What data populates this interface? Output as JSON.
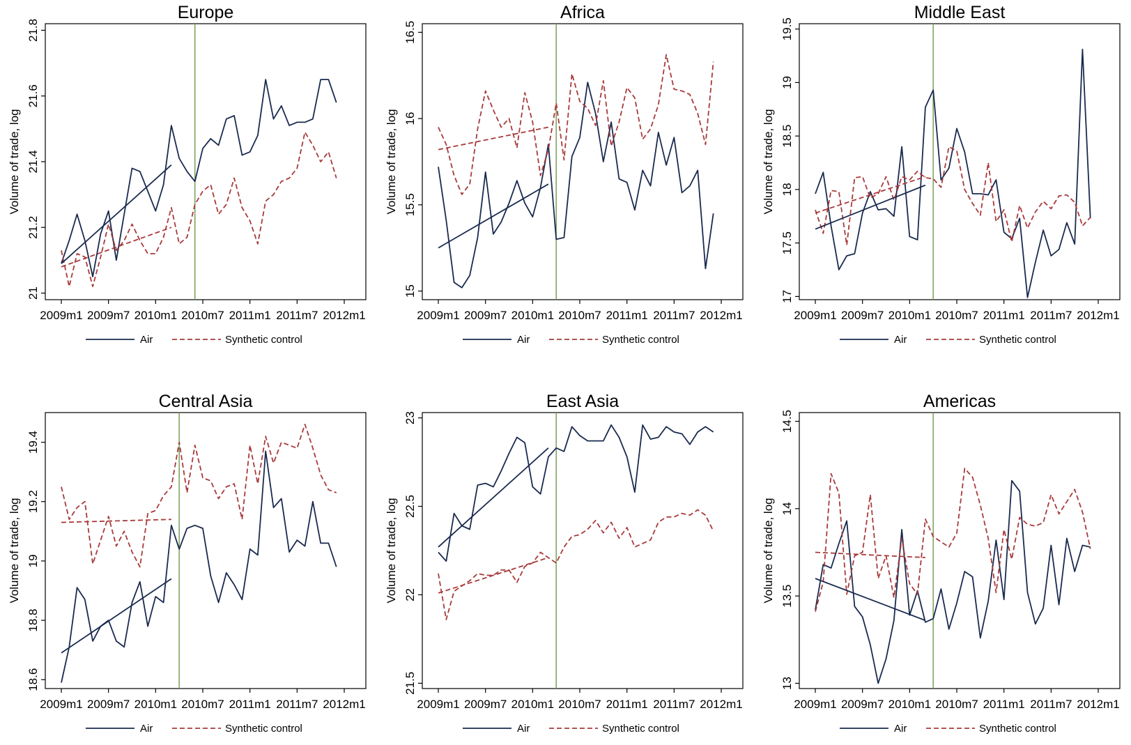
{
  "chart_data": [
    {
      "type": "line",
      "title": "Europe",
      "ylabel": "Volume of trade, log",
      "xlabel": "",
      "x_ticks": [
        "2009m1",
        "2009m7",
        "2010m1",
        "2010m7",
        "2011m1",
        "2011m7",
        "2012m1"
      ],
      "ylim": [
        20.98,
        21.82
      ],
      "y_ticks": [
        "21",
        "21.2",
        "21.4",
        "21.6",
        "21.8"
      ],
      "y_tick_values": [
        21,
        21.2,
        21.4,
        21.6,
        21.8
      ],
      "treatment_month": 17,
      "colors": {
        "air": "#1a2a4f",
        "synthetic": "#a83a3a",
        "vline": "#6f9a4a"
      },
      "legend": [
        "Air",
        "Synthetic control"
      ],
      "series": [
        {
          "name": "Air",
          "style": "solid",
          "values": [
            21.09,
            21.16,
            21.24,
            21.16,
            21.05,
            21.18,
            21.25,
            21.1,
            21.24,
            21.38,
            21.37,
            21.31,
            21.25,
            21.33,
            21.51,
            21.41,
            21.37,
            21.34,
            21.44,
            21.47,
            21.45,
            21.53,
            21.54,
            21.42,
            21.43,
            21.48,
            21.65,
            21.53,
            21.57,
            21.51,
            21.52,
            21.52,
            21.53,
            21.65,
            21.65,
            21.58
          ]
        },
        {
          "name": "Synthetic control",
          "style": "dashed",
          "values": [
            21.13,
            21.02,
            21.12,
            21.11,
            21.02,
            21.11,
            21.21,
            21.13,
            21.16,
            21.21,
            21.16,
            21.12,
            21.12,
            21.17,
            21.26,
            21.15,
            21.17,
            21.27,
            21.31,
            21.33,
            21.24,
            21.27,
            21.35,
            21.26,
            21.22,
            21.15,
            21.28,
            21.3,
            21.34,
            21.35,
            21.38,
            21.49,
            21.45,
            21.4,
            21.43,
            21.35
          ]
        }
      ],
      "trend_lines": [
        {
          "name": "Air",
          "x": [
            0,
            14
          ],
          "y": [
            21.09,
            21.39
          ]
        },
        {
          "name": "Synthetic control",
          "x": [
            0,
            14
          ],
          "y": [
            21.08,
            21.2
          ]
        }
      ]
    },
    {
      "type": "line",
      "title": "Africa",
      "ylabel": "Volume of trade, log",
      "xlabel": "",
      "x_ticks": [
        "2009m1",
        "2009m7",
        "2010m1",
        "2010m7",
        "2011m1",
        "2011m7",
        "2012m1"
      ],
      "ylim": [
        14.95,
        16.55
      ],
      "y_ticks": [
        "15",
        "15.5",
        "16",
        "16.5"
      ],
      "y_tick_values": [
        15,
        15.5,
        16,
        16.5
      ],
      "treatment_month": 15,
      "colors": {
        "air": "#1a2a4f",
        "synthetic": "#a83a3a",
        "vline": "#6f9a4a"
      },
      "legend": [
        "Air",
        "Synthetic control"
      ],
      "series": [
        {
          "name": "Air",
          "style": "solid",
          "values": [
            15.72,
            15.41,
            15.05,
            15.02,
            15.09,
            15.31,
            15.69,
            15.33,
            15.4,
            15.51,
            15.64,
            15.51,
            15.43,
            15.6,
            15.85,
            15.3,
            15.31,
            15.78,
            15.89,
            16.21,
            16.03,
            15.75,
            15.98,
            15.65,
            15.63,
            15.47,
            15.7,
            15.61,
            15.92,
            15.73,
            15.89,
            15.57,
            15.61,
            15.7,
            15.13,
            15.45
          ]
        },
        {
          "name": "Synthetic control",
          "style": "dashed",
          "values": [
            15.95,
            15.85,
            15.67,
            15.56,
            15.62,
            15.94,
            16.16,
            16.05,
            15.95,
            16.0,
            15.83,
            16.15,
            15.98,
            15.67,
            15.82,
            16.09,
            15.76,
            16.26,
            16.1,
            16.06,
            15.96,
            16.22,
            15.84,
            15.98,
            16.18,
            16.12,
            15.88,
            15.94,
            16.08,
            16.37,
            16.17,
            16.16,
            16.14,
            16.03,
            15.85,
            16.33
          ]
        }
      ],
      "trend_lines": [
        {
          "name": "Air",
          "x": [
            0,
            14
          ],
          "y": [
            15.25,
            15.62
          ]
        },
        {
          "name": "Synthetic control",
          "x": [
            0,
            14
          ],
          "y": [
            15.82,
            15.95
          ]
        }
      ]
    },
    {
      "type": "line",
      "title": "Middle East",
      "ylabel": "Volume of trade, log",
      "xlabel": "",
      "x_ticks": [
        "2009m1",
        "2009m7",
        "2010m1",
        "2010m7",
        "2011m1",
        "2011m7",
        "2012m1"
      ],
      "ylim": [
        16.97,
        19.55
      ],
      "y_ticks": [
        "17",
        "17.5",
        "18",
        "18.5",
        "19",
        "19.5"
      ],
      "y_tick_values": [
        17,
        17.5,
        18,
        18.5,
        19,
        19.5
      ],
      "treatment_month": 15,
      "colors": {
        "air": "#1a2a4f",
        "synthetic": "#a83a3a",
        "vline": "#6f9a4a"
      },
      "legend": [
        "Air",
        "Synthetic control"
      ],
      "series": [
        {
          "name": "Air",
          "style": "solid",
          "values": [
            17.96,
            18.16,
            17.66,
            17.25,
            17.38,
            17.4,
            17.78,
            17.98,
            17.81,
            17.82,
            17.75,
            18.4,
            17.56,
            17.53,
            18.77,
            18.93,
            18.09,
            18.2,
            18.57,
            18.35,
            17.96,
            17.96,
            17.95,
            18.09,
            17.6,
            17.54,
            17.73,
            16.99,
            17.32,
            17.62,
            17.38,
            17.44,
            17.69,
            17.49,
            19.31,
            17.73
          ]
        },
        {
          "name": "Synthetic control",
          "style": "dashed",
          "values": [
            17.81,
            17.59,
            17.99,
            17.98,
            17.48,
            18.11,
            18.12,
            17.92,
            17.96,
            18.12,
            17.9,
            18.12,
            18.09,
            18.17,
            18.11,
            18.1,
            18.02,
            18.4,
            18.36,
            18.0,
            17.87,
            17.76,
            18.25,
            17.7,
            17.81,
            17.51,
            17.85,
            17.64,
            17.79,
            17.89,
            17.82,
            17.94,
            17.95,
            17.88,
            17.66,
            17.74
          ]
        }
      ],
      "trend_lines": [
        {
          "name": "Air",
          "x": [
            0,
            14
          ],
          "y": [
            17.63,
            18.04
          ]
        },
        {
          "name": "Synthetic control",
          "x": [
            0,
            14
          ],
          "y": [
            17.78,
            18.12
          ]
        }
      ]
    },
    {
      "type": "line",
      "title": "Central Asia",
      "ylabel": "Volume of trade, log",
      "xlabel": "",
      "x_ticks": [
        "2009m1",
        "2009m7",
        "2010m1",
        "2010m7",
        "2011m1",
        "2011m7",
        "2012m1"
      ],
      "ylim": [
        18.57,
        19.5
      ],
      "y_ticks": [
        "18.6",
        "18.8",
        "19",
        "19.2",
        "19.4"
      ],
      "y_tick_values": [
        18.6,
        18.8,
        19,
        19.2,
        19.4
      ],
      "treatment_month": 15,
      "colors": {
        "air": "#1a2a4f",
        "synthetic": "#a83a3a",
        "vline": "#6f9a4a"
      },
      "legend": [
        "Air",
        "Synthetic control"
      ],
      "series": [
        {
          "name": "Air",
          "style": "solid",
          "values": [
            18.59,
            18.71,
            18.91,
            18.87,
            18.73,
            18.78,
            18.8,
            18.73,
            18.71,
            18.86,
            18.93,
            18.78,
            18.88,
            18.86,
            19.12,
            19.04,
            19.11,
            19.12,
            19.11,
            18.95,
            18.86,
            18.96,
            18.92,
            18.87,
            19.04,
            19.02,
            19.37,
            19.18,
            19.21,
            19.03,
            19.07,
            19.05,
            19.2,
            19.06,
            19.06,
            18.98
          ]
        },
        {
          "name": "Synthetic control",
          "style": "dashed",
          "values": [
            19.25,
            19.14,
            19.18,
            19.2,
            18.99,
            19.07,
            19.15,
            19.05,
            19.1,
            19.03,
            18.98,
            19.16,
            19.17,
            19.22,
            19.25,
            19.4,
            19.23,
            19.39,
            19.28,
            19.27,
            19.21,
            19.25,
            19.26,
            19.14,
            19.39,
            19.26,
            19.42,
            19.33,
            19.4,
            19.39,
            19.38,
            19.46,
            19.38,
            19.29,
            19.24,
            19.23
          ]
        }
      ],
      "trend_lines": [
        {
          "name": "Air",
          "x": [
            0,
            14
          ],
          "y": [
            18.69,
            18.94
          ]
        },
        {
          "name": "Synthetic control",
          "x": [
            0,
            14
          ],
          "y": [
            19.13,
            19.14
          ]
        }
      ]
    },
    {
      "type": "line",
      "title": "East Asia",
      "ylabel": "Volume of trade, log",
      "xlabel": "",
      "x_ticks": [
        "2009m1",
        "2009m7",
        "2010m1",
        "2010m7",
        "2011m1",
        "2011m7",
        "2012m1"
      ],
      "ylim": [
        21.47,
        23.03
      ],
      "y_ticks": [
        "21.5",
        "22",
        "22.5",
        "23"
      ],
      "y_tick_values": [
        21.5,
        22,
        22.5,
        23
      ],
      "treatment_month": 15,
      "colors": {
        "air": "#1a2a4f",
        "synthetic": "#a83a3a",
        "vline": "#6f9a4a"
      },
      "legend": [
        "Air",
        "Synthetic control"
      ],
      "series": [
        {
          "name": "Air",
          "style": "solid",
          "values": [
            22.24,
            22.19,
            22.46,
            22.39,
            22.37,
            22.62,
            22.63,
            22.61,
            22.7,
            22.8,
            22.89,
            22.86,
            22.61,
            22.57,
            22.78,
            22.83,
            22.81,
            22.95,
            22.9,
            22.87,
            22.87,
            22.87,
            22.96,
            22.89,
            22.78,
            22.58,
            22.96,
            22.88,
            22.89,
            22.95,
            22.92,
            22.91,
            22.85,
            22.92,
            22.95,
            22.92
          ]
        },
        {
          "name": "Synthetic control",
          "style": "dashed",
          "values": [
            22.12,
            21.86,
            22.02,
            22.05,
            22.08,
            22.12,
            22.11,
            22.11,
            22.14,
            22.14,
            22.07,
            22.16,
            22.18,
            22.24,
            22.21,
            22.18,
            22.27,
            22.33,
            22.34,
            22.37,
            22.42,
            22.35,
            22.41,
            22.32,
            22.38,
            22.27,
            22.29,
            22.31,
            22.41,
            22.44,
            22.44,
            22.46,
            22.45,
            22.48,
            22.45,
            22.36
          ]
        }
      ],
      "trend_lines": [
        {
          "name": "Air",
          "x": [
            0,
            14
          ],
          "y": [
            22.27,
            22.83
          ]
        },
        {
          "name": "Synthetic control",
          "x": [
            0,
            14
          ],
          "y": [
            22.01,
            22.21
          ]
        }
      ]
    },
    {
      "type": "line",
      "title": "Americas",
      "ylabel": "Volume of trade, log",
      "xlabel": "",
      "x_ticks": [
        "2009m1",
        "2009m7",
        "2010m1",
        "2010m7",
        "2011m1",
        "2011m7",
        "2012m1"
      ],
      "ylim": [
        12.97,
        14.55
      ],
      "y_ticks": [
        "13",
        "13.5",
        "14",
        "14.5"
      ],
      "y_tick_values": [
        13,
        13.5,
        14,
        14.5
      ],
      "treatment_month": 15,
      "colors": {
        "air": "#1a2a4f",
        "synthetic": "#a83a3a",
        "vline": "#6f9a4a"
      },
      "legend": [
        "Air",
        "Synthetic control"
      ],
      "series": [
        {
          "name": "Air",
          "style": "solid",
          "values": [
            13.42,
            13.68,
            13.66,
            13.8,
            13.93,
            13.44,
            13.38,
            13.22,
            13.0,
            13.14,
            13.36,
            13.88,
            13.39,
            13.53,
            13.35,
            13.37,
            13.54,
            13.31,
            13.46,
            13.64,
            13.61,
            13.26,
            13.47,
            13.82,
            13.48,
            14.16,
            14.1,
            13.52,
            13.34,
            13.43,
            13.79,
            13.45,
            13.83,
            13.64,
            13.79,
            13.78
          ]
        },
        {
          "name": "Synthetic control",
          "style": "dashed",
          "values": [
            13.41,
            13.58,
            14.2,
            14.09,
            13.51,
            13.73,
            13.75,
            14.08,
            13.6,
            13.73,
            13.49,
            13.83,
            13.57,
            13.51,
            13.94,
            13.84,
            13.81,
            13.78,
            13.86,
            14.23,
            14.18,
            14.02,
            13.83,
            13.52,
            13.88,
            13.71,
            13.95,
            13.91,
            13.9,
            13.92,
            14.08,
            13.97,
            14.04,
            14.11,
            13.98,
            13.77
          ]
        }
      ],
      "trend_lines": [
        {
          "name": "Air",
          "x": [
            0,
            14
          ],
          "y": [
            13.6,
            13.36
          ]
        },
        {
          "name": "Synthetic control",
          "x": [
            0,
            14
          ],
          "y": [
            13.75,
            13.72
          ]
        }
      ]
    }
  ]
}
